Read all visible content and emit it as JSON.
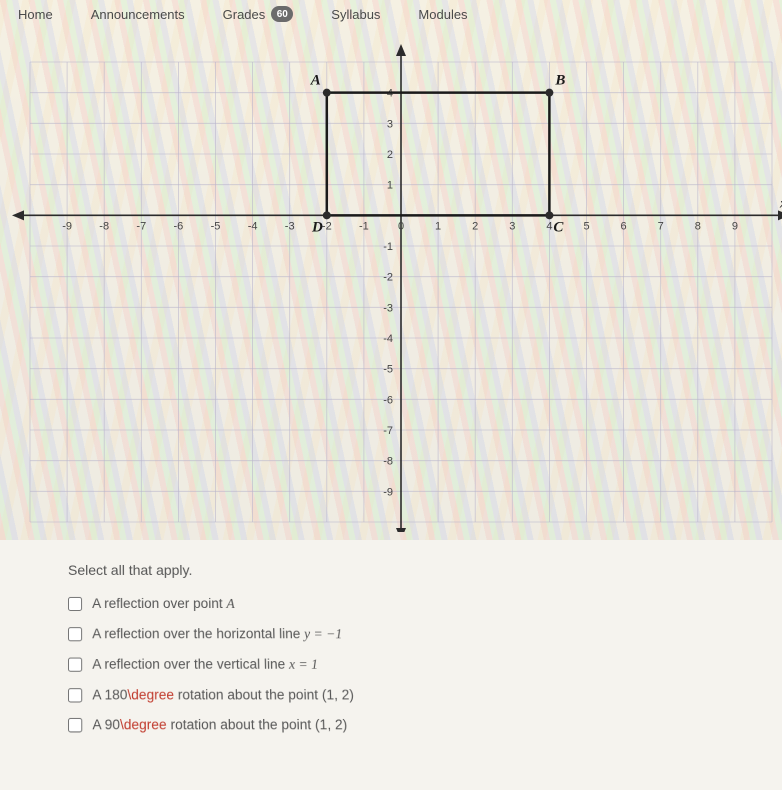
{
  "nav": {
    "home": "Home",
    "announcements": "Announcements",
    "grades": "Grades",
    "grades_badge": "60",
    "syllabus": "Syllabus",
    "modules": "Modules"
  },
  "graph": {
    "type": "coordinate-grid",
    "xmin": -10,
    "xmax": 10,
    "ymin": -10,
    "ymax": 5,
    "xtick_step": 1,
    "ytick_step": 1,
    "x_labels": [
      "-9",
      "-8",
      "-7",
      "-6",
      "-5",
      "-4",
      "-3",
      "-2",
      "-1",
      "0",
      "1",
      "2",
      "3",
      "4",
      "5",
      "6",
      "7",
      "8",
      "9"
    ],
    "y_labels_pos": [
      "1",
      "2",
      "3",
      "4"
    ],
    "y_labels_neg": [
      "-1",
      "-2",
      "-3",
      "-4",
      "-5",
      "-6",
      "-7",
      "-8",
      "-9"
    ],
    "grid_color": "#b9b5cc",
    "axis_color": "#2b2b2b",
    "background_color": "transparent",
    "tick_fontsize": 11,
    "points": {
      "A": {
        "x": -2,
        "y": 4,
        "label": "A"
      },
      "B": {
        "x": 4,
        "y": 4,
        "label": "B"
      },
      "C": {
        "x": 4,
        "y": 0,
        "label": "C"
      },
      "D": {
        "x": -2,
        "y": 0,
        "label": "D"
      }
    },
    "shape_stroke": "#1a1a1a",
    "shape_stroke_width": 2.5,
    "point_radius": 4,
    "point_fill": "#2b2b2b",
    "label_font": "italic 15px Georgia"
  },
  "question": {
    "prompt": "Select all that apply.",
    "options": [
      {
        "pre": "A reflection over point ",
        "kw": "",
        "math": "A",
        "post": ""
      },
      {
        "pre": "A reflection over the horizontal line ",
        "kw": "",
        "math": "y = −1",
        "post": ""
      },
      {
        "pre": "A reflection over the vertical line ",
        "kw": "",
        "math": "x = 1",
        "post": ""
      },
      {
        "pre": "A 180",
        "kw": "\\degree",
        "math": "",
        "post": " rotation about the point (1, 2)"
      },
      {
        "pre": "A 90",
        "kw": "\\degree",
        "math": "",
        "post": " rotation about the point (1, 2)"
      }
    ]
  }
}
